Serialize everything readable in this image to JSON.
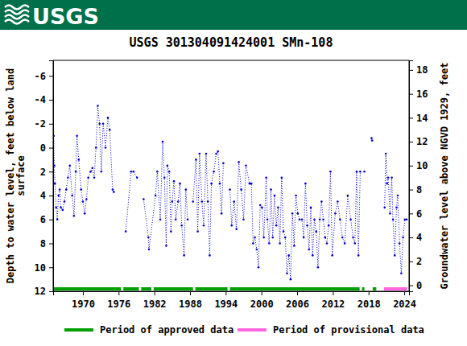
{
  "chart_data": {
    "type": "line",
    "logo": "USGS",
    "title": "USGS 301304091424001 SMn-108",
    "ylabel": [
      "Depth to water level, feet below land",
      "surface"
    ],
    "y2label": "Groundwater level above NGVD 1929, feet",
    "x": [
      1965.1,
      1965.2,
      1965.3,
      1965.5,
      1965.7,
      1965.9,
      1966.1,
      1966.3,
      1966.6,
      1966.9,
      1967.2,
      1967.5,
      1967.8,
      1968.2,
      1968.5,
      1968.8,
      1969.0,
      1969.3,
      1969.7,
      1970.0,
      1970.3,
      1970.6,
      1970.9,
      1971.3,
      1971.6,
      1971.9,
      1972.2,
      1972.5,
      1972.8,
      1973.1,
      1973.4,
      1973.8,
      1974.2,
      1974.5,
      1975.0,
      1975.2,
      1976.0,
      1977.2,
      1978.1,
      1978.5,
      1979.1,
      1979.6,
      1980.2,
      1981.0,
      1981.1,
      1982.2,
      1982.5,
      1983.0,
      1983.4,
      1983.7,
      1984.0,
      1984.2,
      1984.5,
      1984.8,
      1985.0,
      1985.3,
      1985.6,
      1986.0,
      1986.3,
      1986.6,
      1987.0,
      1987.3,
      1987.6,
      1988.0,
      1988.5,
      1989.0,
      1989.3,
      1989.6,
      1990.0,
      1990.3,
      1990.7,
      1991.0,
      1991.3,
      1991.6,
      1992.0,
      1992.4,
      1992.7,
      1993.0,
      1993.3,
      1993.6,
      1994.2,
      1994.7,
      1995.0,
      1995.4,
      1995.8,
      1996.2,
      1996.6,
      1997.0,
      1997.4,
      1998.0,
      1998.3,
      1998.6,
      1998.9,
      1999.2,
      1999.5,
      1999.8,
      2000.1,
      2000.4,
      2000.8,
      2001.0,
      2001.3,
      2001.6,
      2001.9,
      2002.2,
      2002.5,
      2002.8,
      2003.1,
      2003.4,
      2003.7,
      2004.0,
      2004.3,
      2004.6,
      2004.9,
      2005.2,
      2005.5,
      2005.8,
      2006.1,
      2006.4,
      2006.8,
      2007.1,
      2007.4,
      2007.7,
      2008.0,
      2008.3,
      2008.6,
      2008.9,
      2009.2,
      2009.5,
      2009.8,
      2010.1,
      2010.4,
      2010.7,
      2011.0,
      2011.3,
      2011.6,
      2011.9,
      2012.4,
      2012.8,
      2013.2,
      2013.6,
      2014.0,
      2014.5,
      2015.0,
      2015.4,
      2015.7,
      2016.0,
      2016.3,
      2016.6,
      2017.0,
      2017.3,
      2017.8,
      2018.5,
      2018.6,
      2019.5,
      2020.7,
      2020.9,
      2021.1,
      2021.3,
      2021.6,
      2021.9,
      2022.1,
      2022.4,
      2022.7,
      2022.9,
      2023.2,
      2023.5,
      2023.8,
      2024.1,
      2024.4
    ],
    "series": [
      {
        "color": "#0000cc",
        "marker": "circle",
        "line_style": "dotted",
        "values": [
          -1,
          1.5,
          3,
          5,
          6,
          4,
          3.5,
          5,
          5.2,
          4.5,
          3.5,
          2.5,
          1.5,
          4,
          5.7,
          2,
          -1,
          1,
          3.5,
          4.5,
          5.5,
          4.3,
          2.5,
          2,
          1.7,
          2.5,
          0,
          -3.5,
          -2,
          2,
          -2,
          0,
          -2.5,
          -1.5,
          3.5,
          3.7,
          null,
          7,
          2,
          2,
          2.5,
          null,
          4.3,
          7.5,
          8.5,
          4,
          2,
          6,
          -0.5,
          2.5,
          8.2,
          1.5,
          2,
          7,
          4.5,
          2.8,
          6,
          4.5,
          3,
          6.5,
          9,
          3.5,
          6,
          null,
          4.5,
          1,
          7,
          0.5,
          4.5,
          6.5,
          0.5,
          4.5,
          9,
          3,
          2,
          0.5,
          0.3,
          3,
          5.5,
          1.3,
          null,
          3.5,
          6.5,
          4.5,
          6.8,
          1.2,
          3.5,
          6,
          1.5,
          3,
          3,
          8,
          7.5,
          8.5,
          10,
          4.8,
          5,
          7.5,
          2.5,
          6,
          8,
          3.5,
          7.5,
          4,
          6.5,
          5,
          8,
          2.5,
          7,
          7.5,
          10.5,
          9,
          11,
          5.5,
          8.2,
          4,
          5.5,
          6,
          6,
          7.5,
          3,
          6.5,
          8.5,
          5,
          9,
          6,
          7,
          10,
          6,
          4.5,
          6,
          7.5,
          8,
          6.5,
          2,
          9,
          5.5,
          4.5,
          6,
          7.5,
          8,
          4,
          6,
          7.5,
          8,
          2,
          9,
          2,
          null,
          2,
          null,
          -0.8,
          -0.6,
          null,
          5,
          0.5,
          3,
          2.5,
          5.5,
          2.5,
          6,
          9,
          5,
          4,
          8,
          10.5,
          7.5,
          6,
          6
        ]
      }
    ],
    "periods": [
      {
        "name": "Period of approved data",
        "color": "#00a000",
        "ranges": [
          [
            1965,
            1976.4
          ],
          [
            1976.8,
            1979.4
          ],
          [
            1979.8,
            1981.5
          ],
          [
            1981.9,
            1988.5
          ],
          [
            1988.9,
            1994.3
          ],
          [
            1994.7,
            2016.5
          ],
          [
            2016.9,
            2017.3
          ],
          [
            2018.7,
            2019.3
          ]
        ]
      },
      {
        "name": "Period of provisional data",
        "color": "#ff66dd",
        "ranges": [
          [
            2020.6,
            2024.5
          ]
        ]
      }
    ],
    "xlim": [
      1965,
      2024.8
    ],
    "xticks": [
      1970,
      1976,
      1982,
      1988,
      1994,
      2000,
      2006,
      2012,
      2018,
      2024
    ],
    "ylim": [
      12,
      -7.3
    ],
    "yticks": [
      -6,
      -4,
      -2,
      0,
      2,
      4,
      6,
      8,
      10,
      12
    ],
    "y2lim": [
      -0.5,
      18.8
    ],
    "y2ticks": [
      0,
      2,
      4,
      6,
      8,
      10,
      12,
      14,
      16,
      18
    ],
    "grid": false,
    "legend": "bottom"
  }
}
